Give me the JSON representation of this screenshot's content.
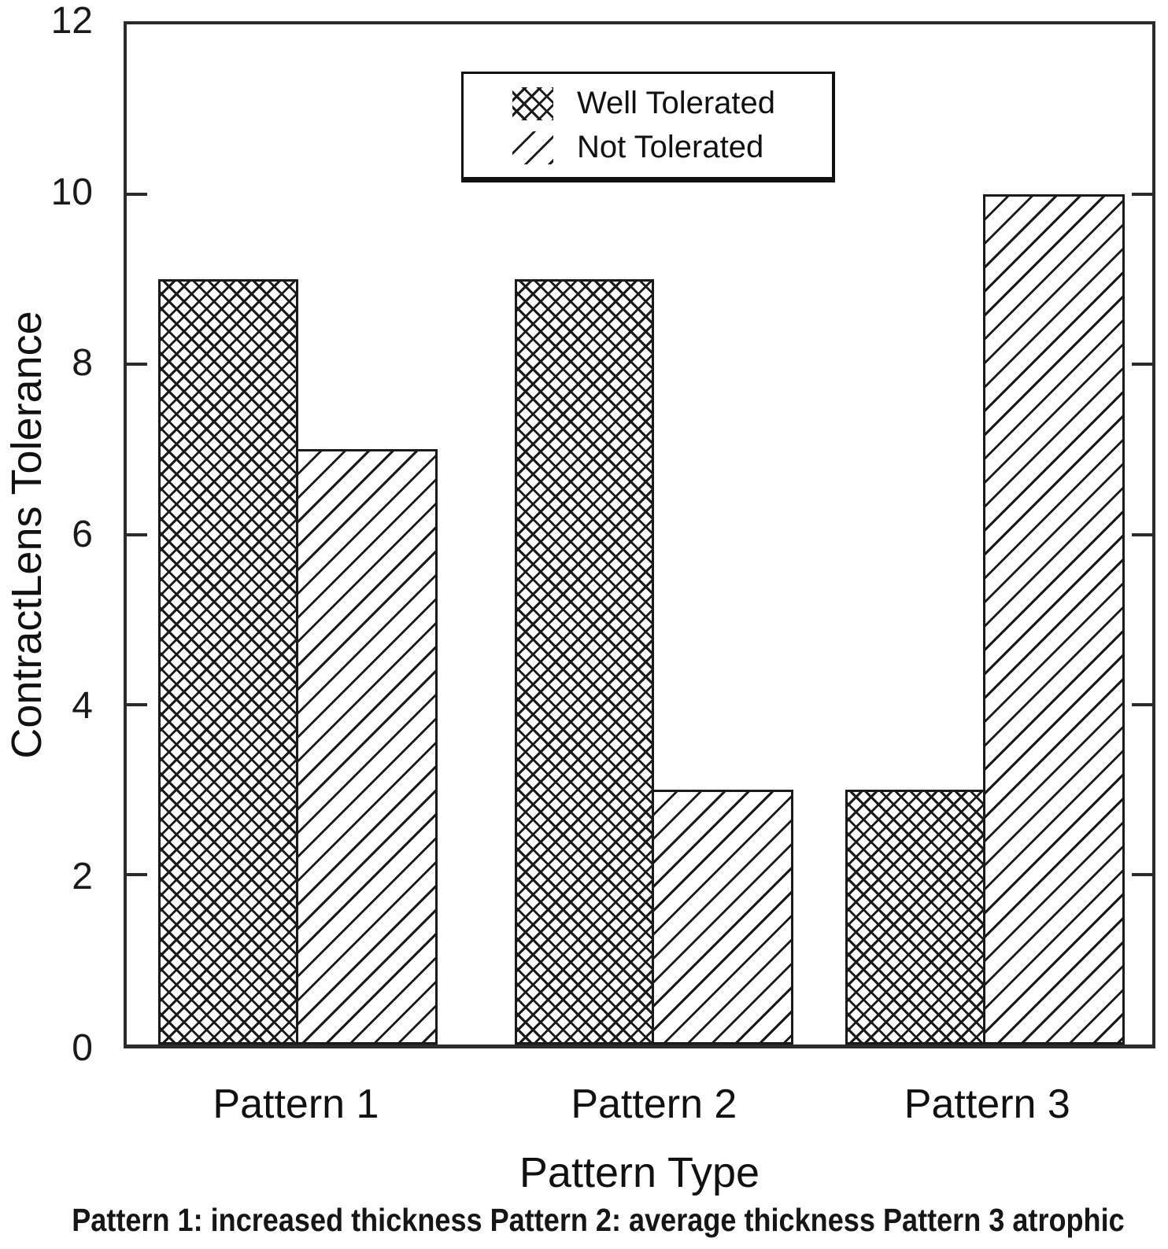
{
  "chart_data": {
    "type": "bar",
    "categories": [
      "Pattern 1",
      "Pattern 2",
      "Pattern 3"
    ],
    "series": [
      {
        "name": "Well Tolerated",
        "pattern": "crosshatch",
        "values": [
          9,
          9,
          3
        ]
      },
      {
        "name": "Not Tolerated",
        "pattern": "diagonal-hatch",
        "values": [
          7,
          3,
          10
        ]
      }
    ],
    "title": "",
    "xlabel": "Pattern Type",
    "ylabel": "ContractLens Tolerance",
    "ylim": [
      0,
      12
    ],
    "yticks": [
      0,
      2,
      4,
      6,
      8,
      10,
      12
    ],
    "legend_position": "upper center",
    "grid": false,
    "bar_fill": "#ffffff",
    "hatch_color": "#1a1a1a",
    "axis_color": "#2b2b2b",
    "caption": "Pattern 1: increased thickness Pattern 2: average thickness Pattern 3 atrophic"
  }
}
